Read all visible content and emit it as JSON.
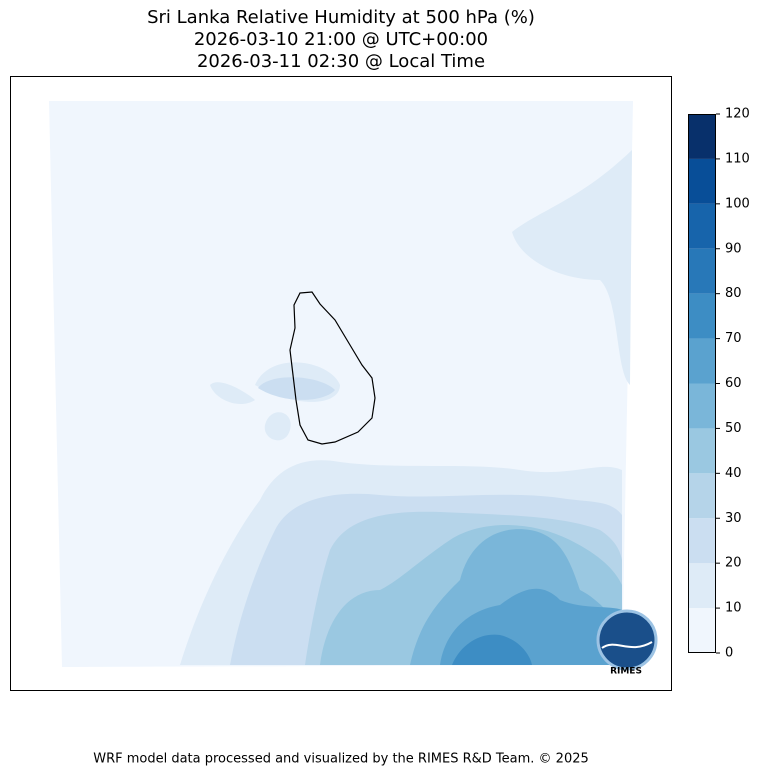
{
  "map": {
    "title": [
      "Sri Lanka Relative Humidity at 500 hPa (%)",
      "2026-03-10 21:00 @ UTC+00:00",
      "2026-03-11 02:30 @ Local Time"
    ],
    "colorbar": {
      "ticks": [
        0,
        10,
        20,
        30,
        40,
        50,
        60,
        70,
        80,
        90,
        100,
        110,
        120
      ],
      "colors": [
        "#f0f6fd",
        "#deebf7",
        "#cbdef1",
        "#b5d4e9",
        "#9ac8e1",
        "#7ab6d9",
        "#5aa2cf",
        "#3d8dc4",
        "#2878b8",
        "#1764ab",
        "#084e98",
        "#08306b"
      ]
    },
    "logo": "RIMES",
    "footer": "WRF model data processed and visualized by the RIMES R&D Team. © 2025"
  }
}
